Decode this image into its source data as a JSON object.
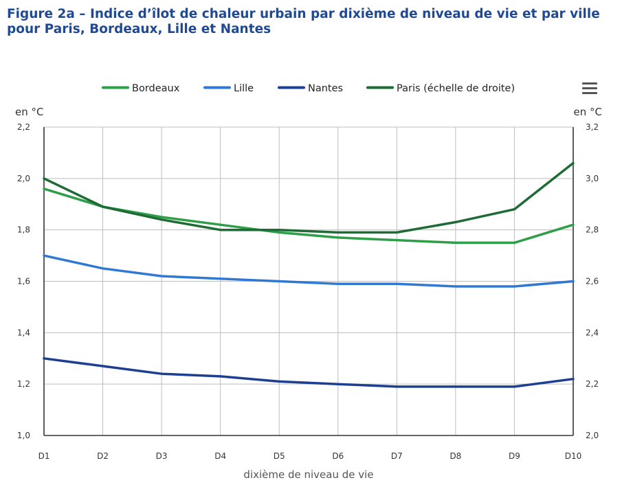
{
  "title": "Figure 2a – Indice d’îlot de chaleur urbain par dixième de niveau de vie et par ville pour Paris, Bordeaux, Lille et Nantes",
  "menu": {
    "icon": "hamburger-menu-icon"
  },
  "chart_data": {
    "type": "line",
    "categories": [
      "D1",
      "D2",
      "D3",
      "D4",
      "D5",
      "D6",
      "D7",
      "D8",
      "D9",
      "D10"
    ],
    "xlabel": "dixième de niveau de vie",
    "left_axis": {
      "unit_label": "en °C",
      "ylim": [
        1.0,
        2.2
      ],
      "ticks": [
        {
          "value": 1.0,
          "label": "1,0"
        },
        {
          "value": 1.2,
          "label": "1,2"
        },
        {
          "value": 1.4,
          "label": "1,4"
        },
        {
          "value": 1.6,
          "label": "1,6"
        },
        {
          "value": 1.8,
          "label": "1,8"
        },
        {
          "value": 2.0,
          "label": "2,0"
        },
        {
          "value": 2.2,
          "label": "2,2"
        }
      ]
    },
    "right_axis": {
      "unit_label": "en °C",
      "ylim": [
        2.0,
        3.2
      ],
      "ticks": [
        {
          "value": 2.0,
          "label": "2,0"
        },
        {
          "value": 2.2,
          "label": "2,2"
        },
        {
          "value": 2.4,
          "label": "2,4"
        },
        {
          "value": 2.6,
          "label": "2,6"
        },
        {
          "value": 2.8,
          "label": "2,8"
        },
        {
          "value": 3.0,
          "label": "3,0"
        },
        {
          "value": 3.2,
          "label": "3,2"
        }
      ]
    },
    "grid": true,
    "legend_position": "top-center",
    "series": [
      {
        "name": "Bordeaux",
        "color": "#2e9e48",
        "axis": "left",
        "values": [
          1.96,
          1.89,
          1.85,
          1.82,
          1.79,
          1.77,
          1.76,
          1.75,
          1.75,
          1.82
        ]
      },
      {
        "name": "Lille",
        "color": "#2f78d4",
        "axis": "left",
        "values": [
          1.7,
          1.65,
          1.62,
          1.61,
          1.6,
          1.59,
          1.59,
          1.58,
          1.58,
          1.6
        ]
      },
      {
        "name": "Nantes",
        "color": "#1c3f91",
        "axis": "left",
        "values": [
          1.3,
          1.27,
          1.24,
          1.23,
          1.21,
          1.2,
          1.19,
          1.19,
          1.19,
          1.22
        ]
      },
      {
        "name": "Paris (échelle de droite)",
        "color": "#1e6b35",
        "axis": "right",
        "values": [
          3.0,
          2.89,
          2.84,
          2.8,
          2.8,
          2.79,
          2.79,
          2.83,
          2.88,
          3.06
        ]
      }
    ]
  }
}
